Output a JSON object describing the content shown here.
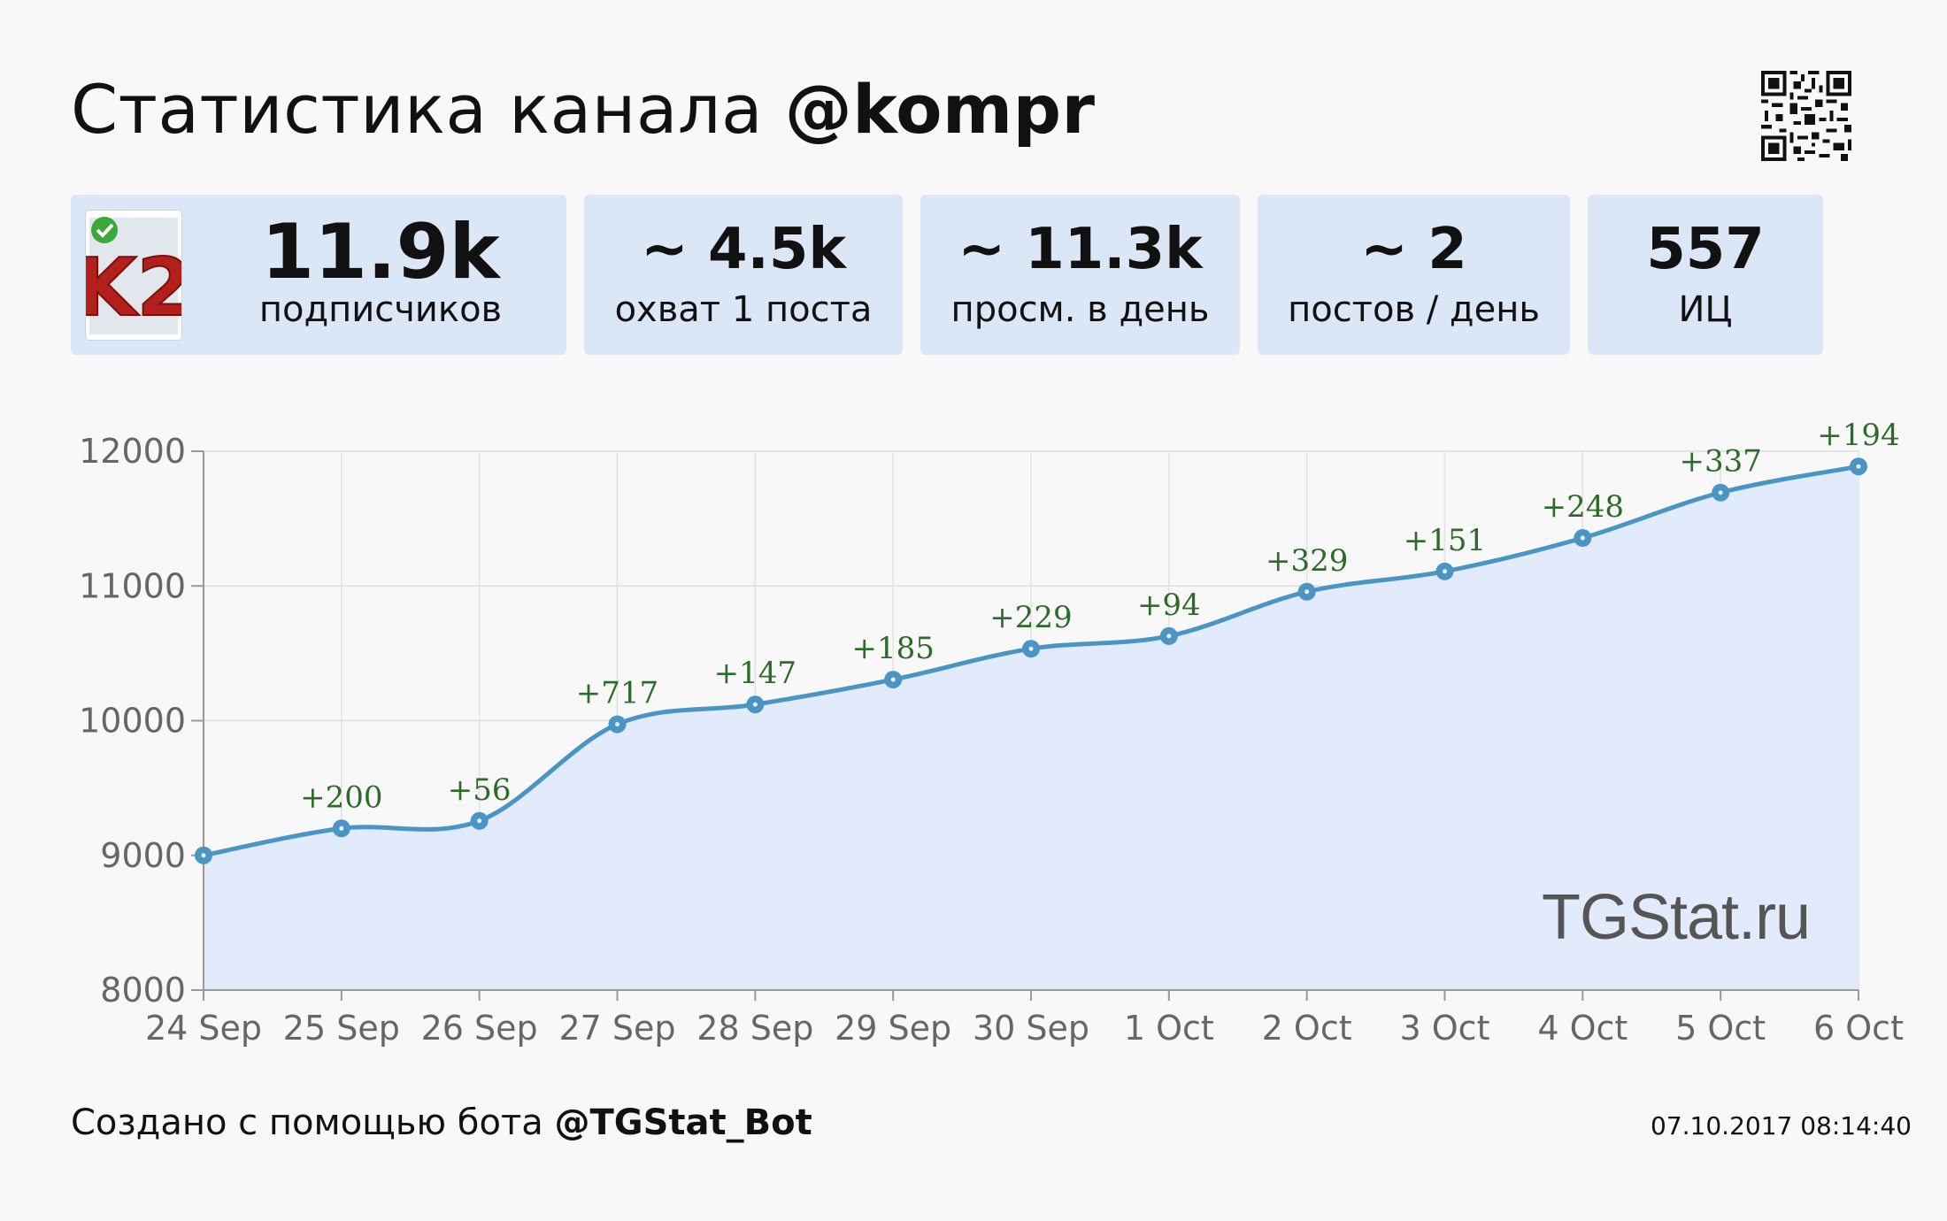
{
  "header": {
    "title_prefix": "Статистика канала",
    "title_handle": "@kompr"
  },
  "cards": [
    {
      "value": "11.9k",
      "label": "подписчиков"
    },
    {
      "value": "~ 4.5k",
      "label": "охват 1 поста"
    },
    {
      "value": "~ 11.3k",
      "label": "просм. в день"
    },
    {
      "value": "~ 2",
      "label": "постов / день"
    },
    {
      "value": "557",
      "label": "ИЦ"
    }
  ],
  "avatar": {
    "text": "K2",
    "verified": true
  },
  "watermark": "TGStat.ru",
  "footer": {
    "text": "Создано с помощью бота",
    "bot": "@TGStat_Bot",
    "timestamp": "07.10.2017 08:14:40"
  },
  "colors": {
    "card_bg": "#dbe6f7",
    "line": "#4a95c4",
    "area": "#dfeafb",
    "label_green": "#2e6b2a"
  },
  "chart_data": {
    "type": "area",
    "x": [
      "24 Sep",
      "25 Sep",
      "26 Sep",
      "27 Sep",
      "28 Sep",
      "29 Sep",
      "30 Sep",
      "1 Oct",
      "2 Oct",
      "3 Oct",
      "4 Oct",
      "5 Oct",
      "6 Oct"
    ],
    "series": [
      {
        "values": [
          9000,
          9200,
          9256,
          9973,
          10120,
          10305,
          10534,
          10628,
          10957,
          11108,
          11356,
          11693,
          11887
        ],
        "labels": [
          "",
          "+200",
          "+56",
          "+717",
          "+147",
          "+185",
          "+229",
          "+94",
          "+329",
          "+151",
          "+248",
          "+337",
          "+194"
        ]
      }
    ],
    "yticks": [
      8000,
      9000,
      10000,
      11000,
      12000
    ],
    "ylim": [
      8000,
      12000
    ],
    "grid": true,
    "legend": "none"
  }
}
